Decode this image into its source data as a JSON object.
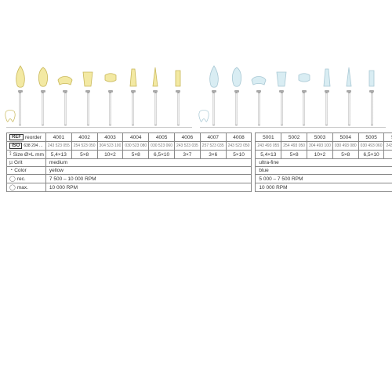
{
  "colors": {
    "yellow_fill": "#f3e9a3",
    "yellow_stroke": "#c9b85a",
    "blue_fill": "#d9edf3",
    "blue_stroke": "#a8c8d4",
    "bg": "#ffffff",
    "border": "#888888",
    "label_text": "#333333"
  },
  "font": {
    "family": "Arial, Helvetica, sans-serif",
    "size": 7
  },
  "shapes": [
    "flame",
    "onion",
    "disc-flare",
    "cup",
    "disc",
    "taper",
    "point",
    "cylinder"
  ],
  "sets": [
    {
      "key": "yellow",
      "refs": [
        "4001",
        "4002",
        "4003",
        "4004",
        "4005",
        "4006",
        "4007",
        "4008"
      ],
      "iso": [
        "243 523 055",
        "254 523 050",
        "304 523 100",
        "030 523 080",
        "030 523 060",
        "243 523 035",
        "257 523 035",
        "243 523 050"
      ],
      "sizes": [
        "5,4×13",
        "5×8",
        "10×2",
        "5×8",
        "6,5×10",
        "3×7",
        "3×6",
        "5×10"
      ]
    },
    {
      "key": "blue",
      "refs": [
        "5001",
        "5002",
        "5003",
        "5004",
        "5005",
        "5006",
        "5007",
        "5008"
      ],
      "iso": [
        "243 493 055",
        "254 493 050",
        "304 493 100",
        "030 493 080",
        "030 493 060",
        "243 493 035",
        "257 493 035",
        "243 493 050"
      ],
      "sizes": [
        "5,4×13",
        "5×8",
        "10×2",
        "5×8",
        "6,5×10",
        "3×7",
        "3×6",
        "5×10"
      ]
    }
  ],
  "rows": {
    "reorder": "reorder",
    "iso_prefix_yellow": "638 204 …",
    "iso_prefix_blue": "638 204 …",
    "size_label": "Size Ø×L mm",
    "grit_label": "Grit",
    "grit_yellow": "medium",
    "grit_blue": "ultra-fine",
    "color_label": "Color",
    "color_yellow": "yellow",
    "color_blue": "blue",
    "rec_label": "rec.",
    "rec_yellow": "7 500 – 10 000 RPM",
    "rec_blue": "5 000 – 7 500 RPM",
    "max_label": "max.",
    "max_yellow": "10 000 RPM",
    "max_blue": "10 000 RPM"
  },
  "labels": {
    "REF": "REF",
    "ISO": "ISO"
  }
}
